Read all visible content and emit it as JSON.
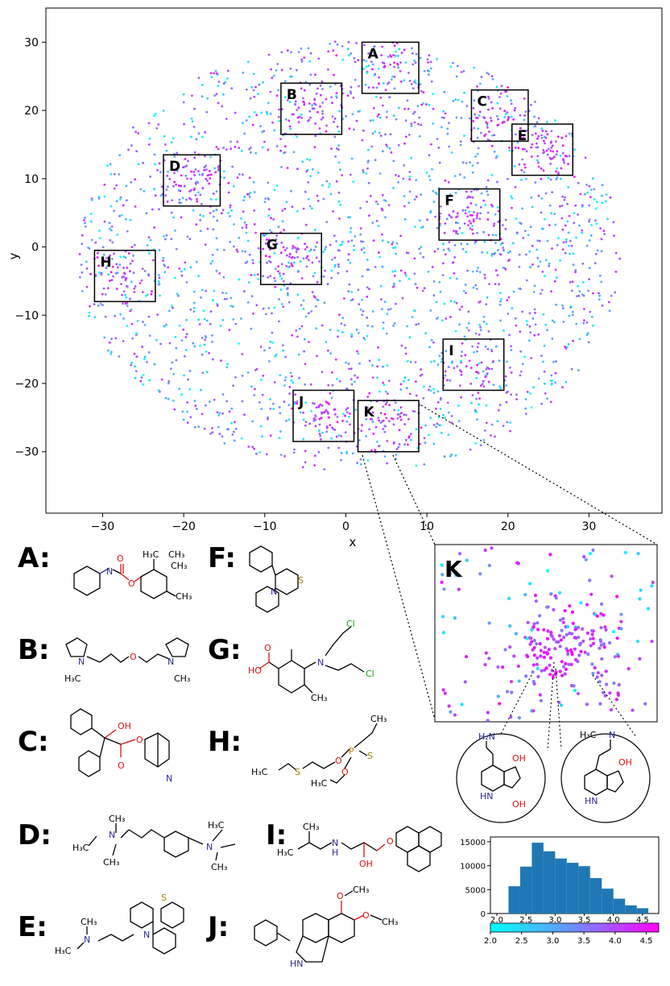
{
  "chart_data": [
    {
      "type": "scatter",
      "title": "",
      "xlabel": "x",
      "ylabel": "y",
      "xlim": [
        -37,
        39
      ],
      "ylim": [
        -39,
        35
      ],
      "xticks": [
        "−30",
        "−20",
        "−10",
        "0",
        "10",
        "20",
        "30"
      ],
      "yticks": [
        "30",
        "20",
        "10",
        "0",
        "−10",
        "−20",
        "−30"
      ],
      "grid": false,
      "colormap": [
        "#00ffff",
        "#ff00ff"
      ],
      "regions": [
        {
          "label": "A",
          "x": [
            2,
            9
          ],
          "y": [
            22.5,
            30
          ]
        },
        {
          "label": "B",
          "x": [
            -8,
            -0.5
          ],
          "y": [
            16.5,
            24
          ]
        },
        {
          "label": "C",
          "x": [
            15.5,
            22.5
          ],
          "y": [
            15.5,
            23
          ]
        },
        {
          "label": "D",
          "x": [
            -22.5,
            -15.5
          ],
          "y": [
            6,
            13.5
          ]
        },
        {
          "label": "E",
          "x": [
            20.5,
            28
          ],
          "y": [
            10.5,
            18
          ]
        },
        {
          "label": "F",
          "x": [
            11.5,
            19
          ],
          "y": [
            1,
            8.5
          ]
        },
        {
          "label": "G",
          "x": [
            -10.5,
            -3
          ],
          "y": [
            -5.5,
            2
          ]
        },
        {
          "label": "H",
          "x": [
            -31,
            -23.5
          ],
          "y": [
            -8,
            -0.5
          ]
        },
        {
          "label": "I",
          "x": [
            12,
            19.5
          ],
          "y": [
            -21,
            -13.5
          ]
        },
        {
          "label": "J",
          "x": [
            -6.5,
            1
          ],
          "y": [
            -28.5,
            -21
          ]
        },
        {
          "label": "K",
          "x": [
            1.5,
            9
          ],
          "y": [
            -30,
            -22.5
          ]
        }
      ]
    },
    {
      "type": "bar",
      "title": "",
      "xticks": [
        "2.0",
        "2.5",
        "3.0",
        "3.5",
        "4.0",
        "4.5"
      ],
      "yticks": [
        "0",
        "5000",
        "10000",
        "15000"
      ],
      "ylim": [
        0,
        16000
      ],
      "categories": [
        "2.0",
        "2.2",
        "2.4",
        "2.6",
        "2.8",
        "3.0",
        "3.2",
        "3.4",
        "3.6",
        "3.8",
        "4.0",
        "4.2",
        "4.4",
        "4.6"
      ],
      "values": [
        0,
        5700,
        9800,
        14800,
        13000,
        11500,
        10600,
        9900,
        7400,
        5200,
        3100,
        1700,
        1100,
        0
      ],
      "color": "#1f77b4"
    },
    {
      "type": "heatmap",
      "title": "",
      "colorbar_ticks": [
        "2.0",
        "2.5",
        "3.0",
        "3.5",
        "4.0",
        "4.5"
      ],
      "range": [
        2.0,
        4.7
      ]
    }
  ],
  "structure_panels": [
    {
      "label": "A:"
    },
    {
      "label": "B:"
    },
    {
      "label": "C:"
    },
    {
      "label": "D:"
    },
    {
      "label": "E:"
    },
    {
      "label": "F:"
    },
    {
      "label": "G:"
    },
    {
      "label": "H:"
    },
    {
      "label": "I:"
    },
    {
      "label": "J:"
    }
  ],
  "inset": {
    "label": "K"
  },
  "chem_text": {
    "a_n": "N",
    "a_o1": "O",
    "a_o2": "O",
    "a_nme3": "H₃C",
    "a_ch3a": "CH₃",
    "a_ch3b": "CH₃",
    "a_ch3c": "CH₃",
    "b_n1": "N",
    "b_n2": "N",
    "b_o": "O",
    "b_me1": "H₃C",
    "b_me2": "CH₃",
    "c_oh": "OH",
    "c_o1": "O",
    "c_o2": "O",
    "c_n": "N",
    "d_n1": "N",
    "d_n2": "N",
    "d_h3c1": "H₃C",
    "d_ch3a": "CH₃",
    "d_ch3b": "CH₃",
    "d_h3c2": "H₃C",
    "d_ch3c": "CH₃",
    "e_s": "S",
    "e_n1": "N",
    "e_n2": "N",
    "e_ch3": "CH₃",
    "e_h3c": "H₃C",
    "f_n": "N",
    "f_s": "S",
    "g_ho": "HO",
    "g_o": "O",
    "g_n": "N",
    "g_cl1": "Cl",
    "g_cl2": "Cl",
    "g_ch3": "CH₃",
    "h_o1": "O",
    "h_o2": "O",
    "h_p": "P",
    "h_s1": "S",
    "h_s2": "S",
    "h_h3c1": "H₃C",
    "h_h3c2": "H₃C",
    "h_ch3": "CH₃",
    "i_n": "N",
    "i_h": "H",
    "i_oh": "OH",
    "i_o": "O",
    "i_h3c": "H₃C",
    "i_ch3": "CH₃",
    "j_o1": "O",
    "j_o2": "O",
    "j_ch3a": "CH₃",
    "j_ch3b": "CH₃",
    "j_hn": "HN",
    "k1_nh2": "H₂N",
    "k1_oh1": "OH",
    "k1_oh2": "OH",
    "k1_hn": "HN",
    "k2_n": "N",
    "k2_h3c": "H₃C",
    "k2_oh": "OH",
    "k2_hn": "HN"
  }
}
